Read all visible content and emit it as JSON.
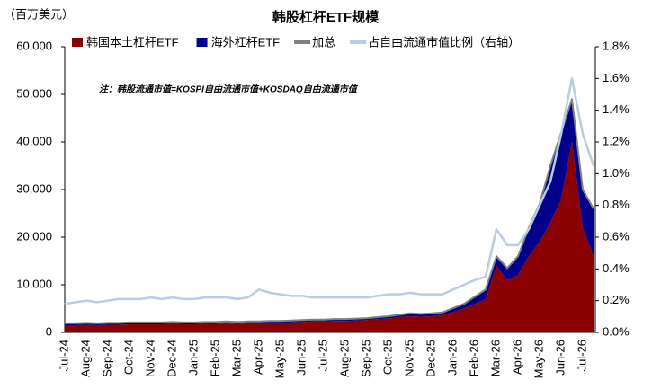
{
  "chart_data": {
    "type": "stacked-area-line",
    "title": "韩股杠杆ETF规模",
    "y_label": "（百万美元）",
    "annotation": "注：韩股流通市值=KOSPI自由流通市值+KOSDAQ自由流通市值",
    "categories": [
      "Jul-24",
      null,
      "Aug-24",
      null,
      "Sep-24",
      null,
      "Oct-24",
      null,
      "Nov-24",
      null,
      "Dec-24",
      null,
      "Jan-25",
      null,
      "Feb-25",
      null,
      "Mar-25",
      null,
      "Apr-25",
      null,
      "May-25",
      null,
      "Jun-25",
      null,
      "Jul-25",
      null,
      "Aug-25",
      null,
      "Sep-25",
      null,
      "Oct-25",
      null,
      "Nov-25",
      null,
      "Dec-25",
      null,
      "Jan-26",
      null,
      "Feb-26",
      null,
      "Mar-26",
      null,
      "Apr-26",
      null,
      "May-26",
      null,
      "Jun-26",
      null,
      "Jul-26",
      null
    ],
    "series": [
      {
        "name": "韩国本土杠杆ETF",
        "color": "#8b0000",
        "kind": "area",
        "values": [
          1500,
          1500,
          1600,
          1500,
          1600,
          1600,
          1700,
          1700,
          1700,
          1700,
          1800,
          1700,
          1700,
          1800,
          1800,
          1900,
          1800,
          1900,
          1900,
          2000,
          2000,
          2100,
          2200,
          2300,
          2300,
          2400,
          2400,
          2500,
          2600,
          2800,
          2900,
          3200,
          3400,
          3300,
          3400,
          3600,
          4300,
          5000,
          6000,
          7000,
          14000,
          11000,
          12000,
          16000,
          19000,
          23000,
          28000,
          40000,
          22000,
          16000
        ]
      },
      {
        "name": "海外杠杆ETF",
        "color": "#00008b",
        "kind": "area",
        "values": [
          400,
          400,
          400,
          400,
          400,
          400,
          400,
          400,
          400,
          400,
          400,
          400,
          400,
          400,
          400,
          400,
          400,
          400,
          400,
          400,
          400,
          400,
          400,
          400,
          400,
          400,
          400,
          400,
          400,
          400,
          500,
          500,
          600,
          600,
          600,
          600,
          800,
          1000,
          1500,
          2000,
          2000,
          2500,
          4000,
          6000,
          8000,
          12000,
          14000,
          9000,
          8000,
          10000
        ]
      },
      {
        "name": "加总",
        "color": "#808080",
        "kind": "line",
        "values": [
          1900,
          1900,
          2000,
          1900,
          2000,
          2000,
          2100,
          2100,
          2100,
          2100,
          2200,
          2100,
          2100,
          2200,
          2200,
          2300,
          2200,
          2300,
          2300,
          2400,
          2400,
          2500,
          2600,
          2700,
          2700,
          2800,
          2800,
          2900,
          3000,
          3200,
          3400,
          3700,
          4000,
          3900,
          4000,
          4200,
          5100,
          6000,
          7500,
          9000,
          16000,
          13500,
          16000,
          22000,
          27000,
          35000,
          42000,
          49000,
          30000,
          26000
        ]
      },
      {
        "name": "占自由流通市值比例（右轴）",
        "color": "#b8cce4",
        "kind": "line",
        "axis": "y2",
        "values": [
          0.18,
          0.19,
          0.2,
          0.19,
          0.2,
          0.21,
          0.21,
          0.21,
          0.22,
          0.21,
          0.22,
          0.21,
          0.21,
          0.22,
          0.22,
          0.22,
          0.21,
          0.22,
          0.27,
          0.25,
          0.24,
          0.23,
          0.23,
          0.22,
          0.22,
          0.22,
          0.22,
          0.22,
          0.22,
          0.23,
          0.24,
          0.24,
          0.25,
          0.24,
          0.24,
          0.24,
          0.27,
          0.3,
          0.33,
          0.35,
          0.65,
          0.55,
          0.55,
          0.65,
          0.8,
          0.95,
          1.25,
          1.6,
          1.25,
          1.05
        ]
      }
    ],
    "ylim": [
      0,
      60000
    ],
    "yticks": [
      0,
      {
        "value": 10000,
        "label": "10,000"
      },
      {
        "value": 20000,
        "label": "20,000"
      },
      {
        "value": 30000,
        "label": "30,000"
      },
      {
        "value": 40000,
        "label": "40,000"
      },
      {
        "value": 50000,
        "label": "50,000"
      },
      {
        "value": 60000,
        "label": "60,000"
      }
    ],
    "y2lim": [
      0,
      1.8
    ],
    "y2ticks": [
      {
        "value": 0,
        "label": "0.0%"
      },
      {
        "value": 0.2,
        "label": "0.2%"
      },
      {
        "value": 0.4,
        "label": "0.4%"
      },
      {
        "value": 0.6,
        "label": "0.6%"
      },
      {
        "value": 0.8,
        "label": "0.8%"
      },
      {
        "value": 1.0,
        "label": "1.0%"
      },
      {
        "value": 1.2,
        "label": "1.2%"
      },
      {
        "value": 1.4,
        "label": "1.4%"
      },
      {
        "value": 1.6,
        "label": "1.6%"
      },
      {
        "value": 1.8,
        "label": "1.8%"
      }
    ]
  }
}
